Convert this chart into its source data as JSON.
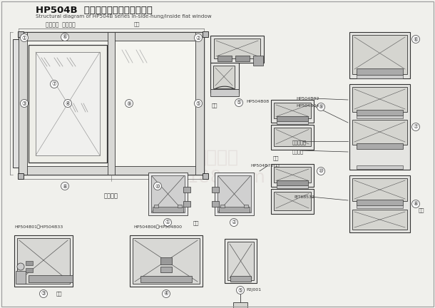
{
  "title_cn": "HP504B  系列内开内倒平开窗结构图",
  "title_en": "Structural diagram of HP504B series in-side-hung/inside flat window",
  "subtitle_cn": "以人为本  追求卓越",
  "subtitle_note": "转角",
  "bg_color": "#f0f0ec",
  "line_color": "#555555",
  "dark_line": "#333333",
  "text_color": "#333333",
  "label_outside": "外视内开",
  "label_model_5": "HP504B08",
  "label_model_1": "HP504B72(1)",
  "label_model_b01": "HP504B01－HP504B33",
  "label_model_b06": "HP504B06－HP504B00",
  "label_model_b32": "HP504B32",
  "label_model_b04": "HP504B04",
  "label_glass1": "玻璃密封胶",
  "label_glass2": "玻璃垫块",
  "label_pj": "PJT68532",
  "label_p2j001": "P2J001"
}
